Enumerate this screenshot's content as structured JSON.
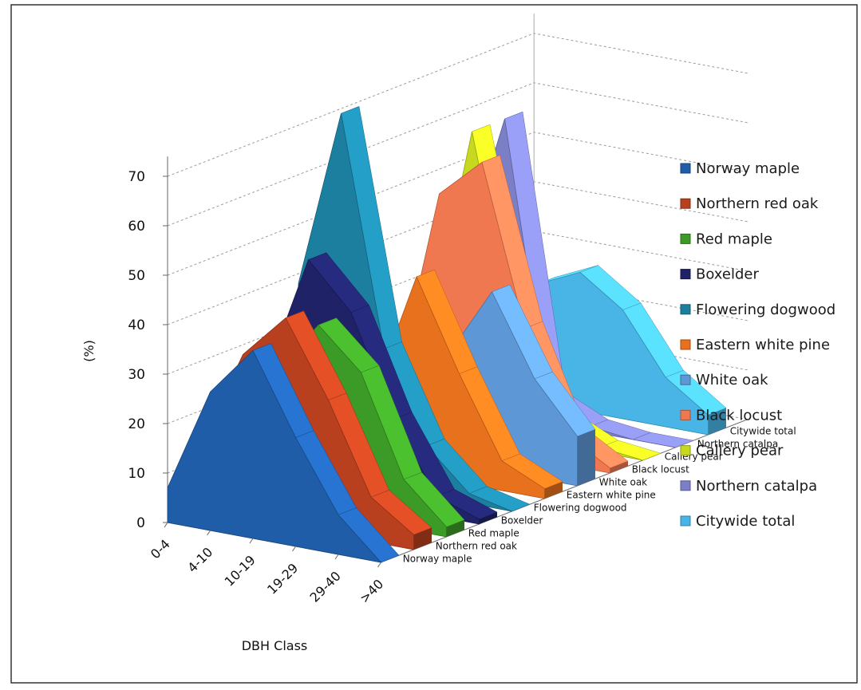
{
  "chart_data": {
    "type": "area",
    "subtype": "3d-stacked-depth",
    "title": "",
    "xlabel": "DBH Class",
    "ylabel": "(%)",
    "ylim": [
      0,
      70
    ],
    "yticks": [
      "0",
      "10",
      "20",
      "30",
      "40",
      "50",
      "60",
      "70"
    ],
    "categories": [
      "0-4",
      "4-10",
      "10-19",
      "19-29",
      "29-40",
      ">40"
    ],
    "legend_position": "right",
    "series": [
      {
        "name": "Norway maple",
        "color": "#1f5da8",
        "values": [
          7,
          28,
          38,
          22,
          8,
          0
        ]
      },
      {
        "name": "Northern red oak",
        "color": "#b8401f",
        "values": [
          13,
          33,
          42,
          27,
          9,
          3
        ]
      },
      {
        "name": "Red maple",
        "color": "#3c9a26",
        "values": [
          10,
          27,
          38,
          30,
          10,
          2
        ]
      },
      {
        "name": "Boxelder",
        "color": "#1f2266",
        "values": [
          22,
          47,
          38,
          18,
          4,
          1
        ]
      },
      {
        "name": "Flowering dogwood",
        "color": "#1d7fa0",
        "values": [
          38,
          74,
          28,
          10,
          2,
          0
        ]
      },
      {
        "name": "Eastern white pine",
        "color": "#e8711d",
        "values": [
          3,
          15,
          40,
          22,
          6,
          2
        ]
      },
      {
        "name": "White oak",
        "color": "#5e97d6",
        "values": [
          2,
          8,
          22,
          36,
          20,
          10
        ]
      },
      {
        "name": "Black locust",
        "color": "#f07850",
        "values": [
          10,
          50,
          58,
          26,
          6,
          1
        ]
      },
      {
        "name": "Callery pear",
        "color": "#c7d91f",
        "values": [
          18,
          60,
          20,
          5,
          1,
          0
        ]
      },
      {
        "name": "Northern catalpa",
        "color": "#7b7fc6",
        "values": [
          30,
          60,
          5,
          1,
          0,
          0
        ]
      },
      {
        "name": "Citywide total",
        "color": "#49b5e6",
        "values": [
          10,
          24,
          28,
          22,
          10,
          4
        ]
      }
    ],
    "depth_labels": [
      "Norway maple",
      "Northern red oak",
      "Red maple",
      "Boxelder",
      "Flowering dogwood",
      "Eastern white pine",
      "White oak",
      "Black locust",
      "Callery pear",
      "Northern catalpa",
      "Citywide total"
    ]
  }
}
